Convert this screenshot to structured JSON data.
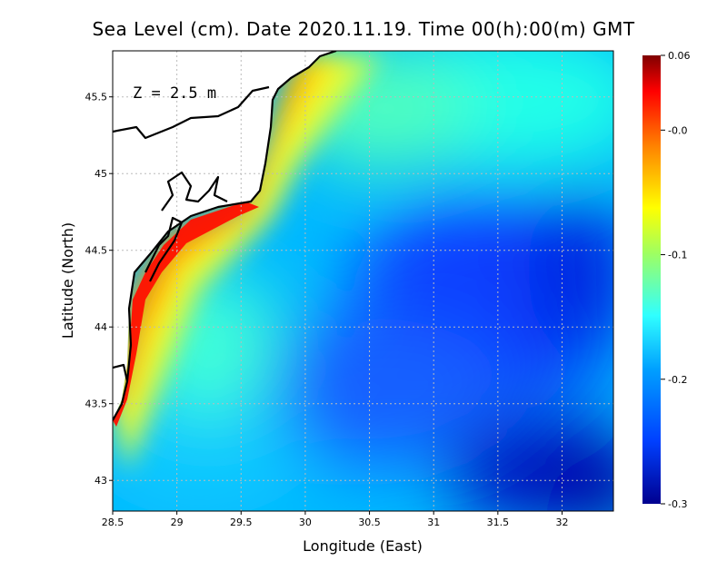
{
  "title": "Sea Level (cm). Date 2020.11.19. Time 00(h):00(m) GMT",
  "depth_label": "Z = 2.5 m",
  "colors": {
    "ramp": [
      "#00008f",
      "#0040ff",
      "#00c0ff",
      "#40ffff",
      "#ffff00",
      "#ff8000",
      "#ff0000",
      "#800000"
    ]
  },
  "chart_data": {
    "type": "heatmap",
    "xlabel": "Longitude (East)",
    "ylabel": "Latitude (North)",
    "xlim": [
      28.5,
      32.4
    ],
    "ylim": [
      42.8,
      45.8
    ],
    "x_ticks": [
      "28.5",
      "29",
      "29.5",
      "30",
      "30.5",
      "31",
      "31.5",
      "32"
    ],
    "x_tick_values": [
      28.5,
      29,
      29.5,
      30,
      30.5,
      31,
      31.5,
      32
    ],
    "y_ticks": [
      "43",
      "43.5",
      "44",
      "44.5",
      "45",
      "45.5"
    ],
    "y_tick_values": [
      43,
      43.5,
      44,
      44.5,
      45,
      45.5
    ],
    "grid": true,
    "colorbar": {
      "range": [
        -0.3,
        0.06
      ],
      "ticks": [
        "0.06",
        "-0.0",
        "-0.1",
        "-0.2",
        "-0.3"
      ],
      "tick_values": [
        0.06,
        0.0,
        -0.1,
        -0.2,
        -0.3
      ]
    },
    "field_summary": [
      {
        "region": "western coastal strip (Romanian/Bulgarian shelf)",
        "value": 0.04
      },
      {
        "region": "near-coast belt",
        "value": -0.05
      },
      {
        "region": "north-east",
        "value": -0.14
      },
      {
        "region": "central basin",
        "value": -0.2
      },
      {
        "region": "south-east corner",
        "value": -0.3
      }
    ]
  }
}
